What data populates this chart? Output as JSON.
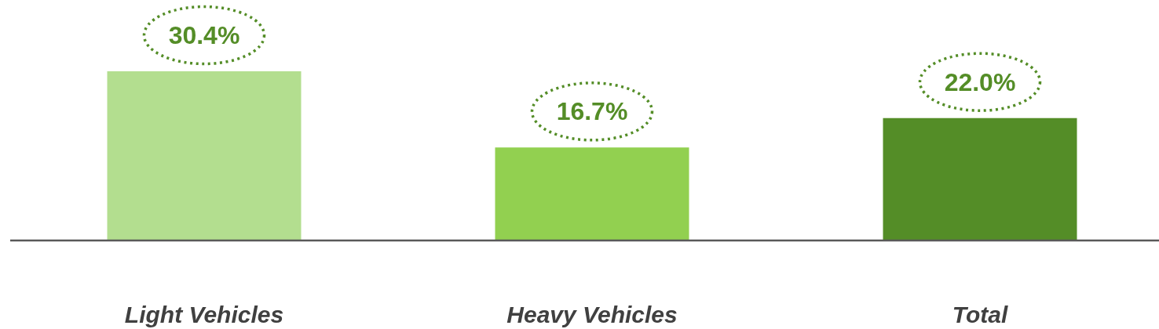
{
  "chart_data": {
    "type": "bar",
    "categories": [
      "Light Vehicles",
      "Heavy Vehicles",
      "Total"
    ],
    "values": [
      30.4,
      16.7,
      22.0
    ],
    "colors": [
      "#b3de8f",
      "#92d050",
      "#548d27"
    ],
    "value_labels": [
      "30.4%",
      "16.7%",
      "22.0%"
    ]
  }
}
